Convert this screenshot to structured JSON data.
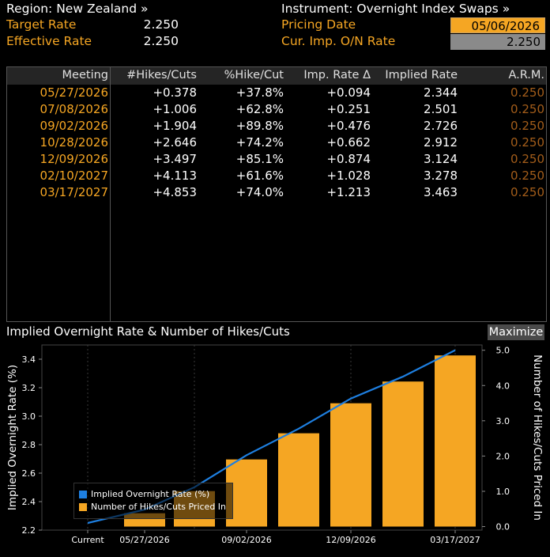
{
  "header": {
    "region_label": "Region: New Zealand »",
    "target_label": "Target Rate",
    "target_value": "2.250",
    "effective_label": "Effective Rate",
    "effective_value": "2.250",
    "instrument_label": "Instrument: Overnight Index Swaps »",
    "pricing_label": "Pricing Date",
    "pricing_value": "05/06/2026",
    "cur_label": "Cur. Imp. O/N Rate",
    "cur_value": "2.250"
  },
  "table": {
    "columns": [
      "Meeting",
      "#Hikes/Cuts",
      "%Hike/Cut",
      "Imp. Rate Δ",
      "Implied Rate",
      "A.R.M."
    ],
    "rows": [
      [
        "05/27/2026",
        "+0.378",
        "+37.8%",
        "+0.094",
        "2.344",
        "0.250"
      ],
      [
        "07/08/2026",
        "+1.006",
        "+62.8%",
        "+0.251",
        "2.501",
        "0.250"
      ],
      [
        "09/02/2026",
        "+1.904",
        "+89.8%",
        "+0.476",
        "2.726",
        "0.250"
      ],
      [
        "10/28/2026",
        "+2.646",
        "+74.2%",
        "+0.662",
        "2.912",
        "0.250"
      ],
      [
        "12/09/2026",
        "+3.497",
        "+85.1%",
        "+0.874",
        "3.124",
        "0.250"
      ],
      [
        "02/10/2027",
        "+4.113",
        "+61.6%",
        "+1.028",
        "3.278",
        "0.250"
      ],
      [
        "03/17/2027",
        "+4.853",
        "+74.0%",
        "+1.213",
        "3.463",
        "0.250"
      ]
    ]
  },
  "chart_panel": {
    "title": "Implied Overnight Rate & Number of Hikes/Cuts",
    "maximize_label": "Maximize"
  },
  "colors": {
    "accent": "#f5a623",
    "line": "#1e7fe0"
  },
  "chart_data": {
    "type": "bar",
    "categories": [
      "Current",
      "05/27/2026",
      "07/08/2026",
      "09/02/2026",
      "10/28/2026",
      "12/09/2026",
      "02/10/2027",
      "03/17/2027"
    ],
    "x_tick_labels": [
      "Current",
      "05/27/2026",
      "09/02/2026",
      "12/09/2026",
      "03/17/2027"
    ],
    "series": [
      {
        "name": "Implied Overnight Rate (%)",
        "type": "line",
        "axis": "left",
        "values": [
          2.25,
          2.344,
          2.501,
          2.726,
          2.912,
          3.124,
          3.278,
          3.463
        ]
      },
      {
        "name": "Number of Hikes/Cuts Priced In",
        "type": "bar",
        "axis": "right",
        "values": [
          0,
          0.378,
          1.006,
          1.904,
          2.646,
          3.497,
          4.113,
          4.853
        ]
      }
    ],
    "ylabel": "Implied Overnight Rate (%)",
    "y2label": "Number of Hikes/Cuts Priced In",
    "ylim": [
      2.2,
      3.5
    ],
    "y_ticks": [
      "2.2",
      "2.4",
      "2.6",
      "2.8",
      "3.0",
      "3.2",
      "3.4"
    ],
    "y2lim": [
      -0.1,
      5.15
    ],
    "y2_ticks": [
      "0.0",
      "1.0",
      "2.0",
      "3.0",
      "4.0",
      "5.0"
    ],
    "legend_position": "bottom-left",
    "grid": true
  }
}
